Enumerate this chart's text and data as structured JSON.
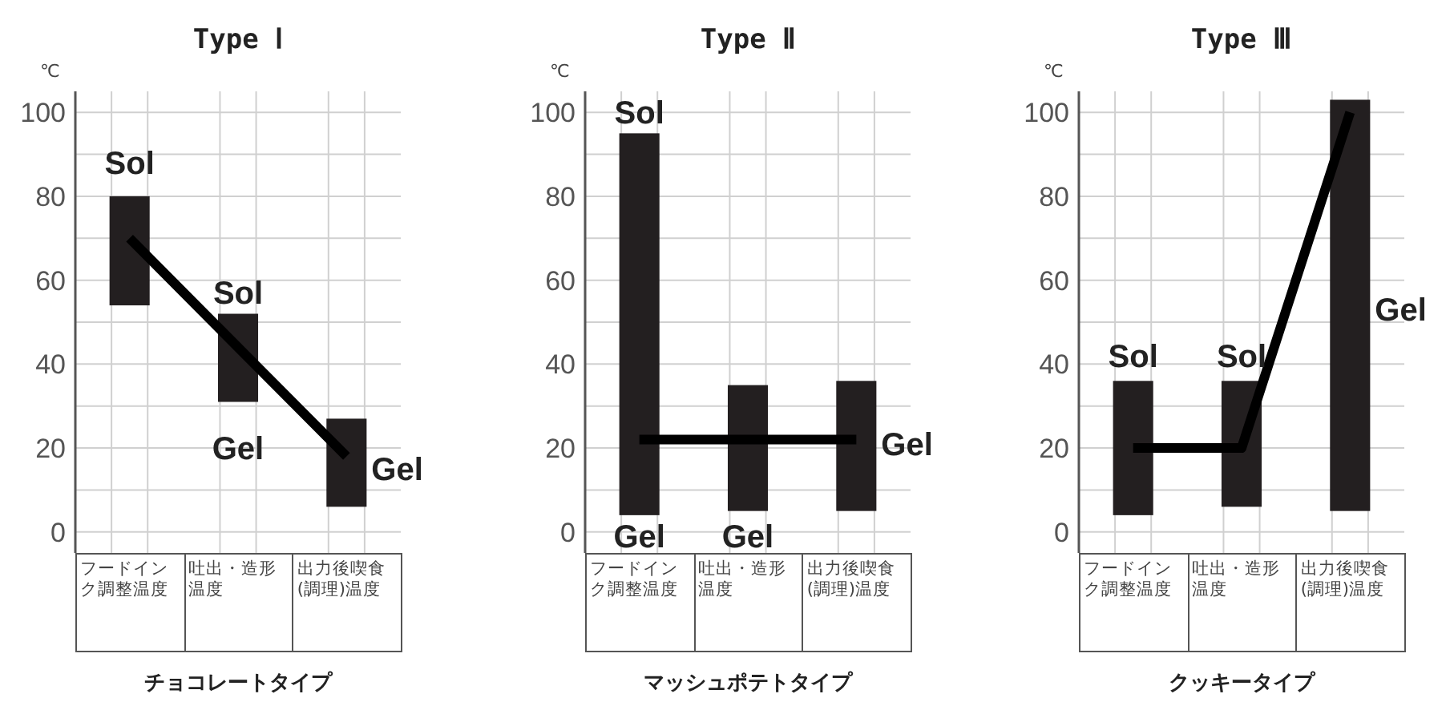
{
  "chart_data": [
    {
      "type": "bar",
      "title": "Type Ⅰ",
      "ylabel": "℃",
      "xlabel": "チョコレートタイプ",
      "categories": [
        "フードインク調整温度",
        "吐出・造形温度",
        "出力後喫食(調理)温度"
      ],
      "series": [
        {
          "color": "#231f20",
          "base": [
            54,
            31,
            6
          ],
          "values": [
            26,
            21,
            21
          ]
        },
        {
          "type": "line",
          "color": "#000000",
          "values": [
            70,
            44,
            18
          ]
        }
      ],
      "ylim": [
        -5,
        105
      ],
      "yticks": [
        0,
        {
          "value": 10,
          "label": null
        },
        20,
        {
          "value": 30,
          "label": null
        },
        40,
        {
          "value": 50,
          "label": null
        },
        60,
        {
          "value": 70,
          "label": null
        },
        80,
        {
          "value": 90,
          "label": null
        },
        100
      ],
      "grid": true,
      "annotations": [
        "Sol",
        "Sol",
        "Gel",
        "Gel"
      ]
    },
    {
      "type": "bar",
      "title": "Type Ⅱ",
      "ylabel": "℃",
      "xlabel": "マッシュポテトタイプ",
      "categories": [
        "フードインク調整温度",
        "吐出・造形温度",
        "出力後喫食(調理)温度"
      ],
      "series": [
        {
          "color": "#231f20",
          "base": [
            4,
            5,
            5
          ],
          "values": [
            91,
            30,
            31
          ]
        },
        {
          "type": "line",
          "color": "#000000",
          "values": [
            22,
            22,
            22
          ]
        }
      ],
      "ylim": [
        -5,
        105
      ],
      "yticks": [
        0,
        {
          "value": 10,
          "label": null
        },
        20,
        {
          "value": 30,
          "label": null
        },
        40,
        {
          "value": 50,
          "label": null
        },
        60,
        {
          "value": 70,
          "label": null
        },
        80,
        {
          "value": 90,
          "label": null
        },
        100
      ],
      "grid": true,
      "annotations": [
        "Sol",
        "Gel",
        "Gel",
        "Gel"
      ]
    },
    {
      "type": "bar",
      "title": "Type Ⅲ",
      "ylabel": "℃",
      "xlabel": "クッキータイプ",
      "categories": [
        "フードインク調整温度",
        "吐出・造形温度",
        "出力後喫食(調理)温度"
      ],
      "series": [
        {
          "color": "#231f20",
          "base": [
            4,
            6,
            5
          ],
          "values": [
            32,
            30,
            98
          ]
        },
        {
          "type": "line",
          "color": "#000000",
          "values": [
            20,
            20,
            100
          ]
        }
      ],
      "ylim": [
        -5,
        105
      ],
      "yticks": [
        0,
        {
          "value": 10,
          "label": null
        },
        20,
        {
          "value": 30,
          "label": null
        },
        40,
        {
          "value": 50,
          "label": null
        },
        60,
        {
          "value": 70,
          "label": null
        },
        80,
        {
          "value": 90,
          "label": null
        },
        100
      ],
      "grid": true,
      "annotations": [
        "Sol",
        "Sol",
        "Gel"
      ]
    }
  ]
}
